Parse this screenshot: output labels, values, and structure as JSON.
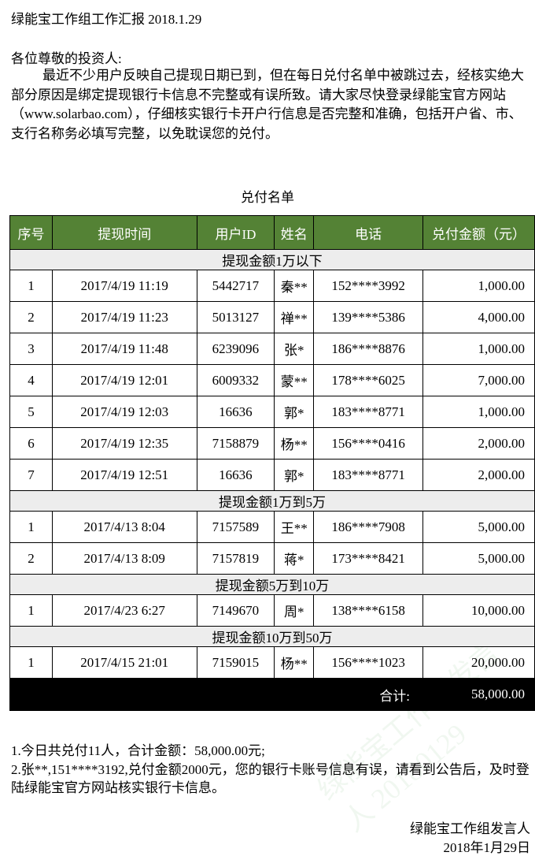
{
  "title": "绿能宝工作组工作汇报 2018.1.29",
  "greeting": "各位尊敬的投资人:",
  "paragraph": "最近不少用户反映自己提现日期已到，但在每日兑付名单中被跳过去，经核实绝大部分原因是绑定提现银行卡信息不完整或有误所致。请大家尽快登录绿能宝官方网站（www.solarbao.com），仔细核实银行卡开户行信息是否完整和准确，包括开户省、市、支行名称务必填写完整，以免耽误您的兑付。",
  "list_title": "兑付名单",
  "header_color": "#548235",
  "columns": [
    "序号",
    "提现时间",
    "用户ID",
    "姓名",
    "电话",
    "兑付金额（元）"
  ],
  "groups": [
    {
      "label": "提现金额1万以下",
      "rows": [
        [
          "1",
          "2017/4/19 11:19",
          "5442717",
          "秦**",
          "152****3992",
          "1,000.00"
        ],
        [
          "2",
          "2017/4/19 11:23",
          "5013127",
          "禅**",
          "139****5386",
          "4,000.00"
        ],
        [
          "3",
          "2017/4/19 11:48",
          "6239096",
          "张*",
          "186****8876",
          "1,000.00"
        ],
        [
          "4",
          "2017/4/19 12:01",
          "6009332",
          "蒙**",
          "178****6025",
          "7,000.00"
        ],
        [
          "5",
          "2017/4/19 12:03",
          "16636",
          "郭*",
          "183****8771",
          "1,000.00"
        ],
        [
          "6",
          "2017/4/19 12:35",
          "7158879",
          "杨**",
          "156****0416",
          "2,000.00"
        ],
        [
          "7",
          "2017/4/19 12:51",
          "16636",
          "郭*",
          "183****8771",
          "2,000.00"
        ]
      ]
    },
    {
      "label": "提现金额1万到5万",
      "rows": [
        [
          "1",
          "2017/4/13 8:04",
          "7157589",
          "王**",
          "186****7908",
          "5,000.00"
        ],
        [
          "2",
          "2017/4/13 8:09",
          "7157819",
          "蒋*",
          "173****8421",
          "5,000.00"
        ]
      ]
    },
    {
      "label": "提现金额5万到10万",
      "rows": [
        [
          "1",
          "2017/4/23 6:27",
          "7149670",
          "周*",
          "138****6158",
          "10,000.00"
        ]
      ]
    },
    {
      "label": "提现金额10万到50万",
      "rows": [
        [
          "1",
          "2017/4/15 21:01",
          "7159015",
          "杨**",
          "156****1023",
          "20,000.00"
        ]
      ]
    }
  ],
  "total": {
    "label": "合计:",
    "amount": "58,000.00"
  },
  "notes": [
    "1.今日共兑付11人，合计金额：58,000.00元;",
    "2.张**,151****3192,兑付金额2000元，您的银行卡账号信息有误，请看到公告后，及时登陆绿能宝官方网站核实银行卡信息。"
  ],
  "signature": {
    "name": "绿能宝工作组发言人",
    "date": "2018年1月29日"
  },
  "watermark": "绿能宝工作组发言人 20180129"
}
